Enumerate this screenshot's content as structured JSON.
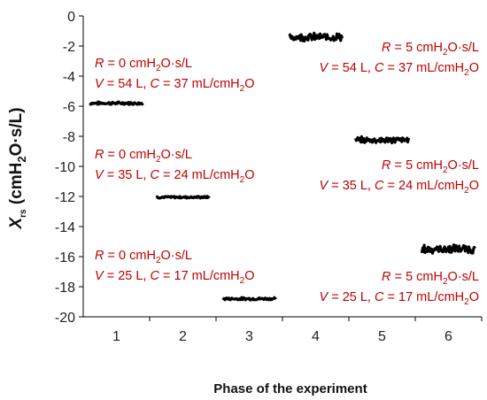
{
  "chart_data": {
    "type": "scatter",
    "xlabel": "Phase of the experiment",
    "ylabel": "Xrs (cmH2O·s/L)",
    "ylabel_main": "X",
    "ylabel_sub": "rs",
    "ylabel_units_pre": " (cmH",
    "ylabel_units_sub": "2",
    "ylabel_units_post": "O·s/L)",
    "xlim": [
      0.5,
      6.5
    ],
    "ylim": [
      -20,
      0
    ],
    "xticks": [
      "1",
      "2",
      "3",
      "4",
      "5",
      "6"
    ],
    "yticks": [
      "0",
      "-2",
      "-4",
      "-6",
      "-8",
      "-10",
      "-12",
      "-14",
      "-16",
      "-18",
      "-20"
    ],
    "grid": false,
    "series": [
      {
        "phase": 1,
        "x_range": [
          0.6,
          1.4
        ],
        "y_mean": -5.8,
        "noise": 0.08
      },
      {
        "phase": 2,
        "x_range": [
          1.6,
          2.4
        ],
        "y_mean": -12.05,
        "noise": 0.06
      },
      {
        "phase": 3,
        "x_range": [
          2.6,
          3.4
        ],
        "y_mean": -18.8,
        "noise": 0.07
      },
      {
        "phase": 4,
        "x_range": [
          3.6,
          4.4
        ],
        "y_mean": -1.4,
        "noise": 0.22
      },
      {
        "phase": 5,
        "x_range": [
          4.6,
          5.4
        ],
        "y_mean": -8.25,
        "noise": 0.18
      },
      {
        "phase": 6,
        "x_range": [
          5.6,
          6.4
        ],
        "y_mean": -15.5,
        "noise": 0.25
      }
    ],
    "annotations": [
      {
        "id": "a1",
        "r": "0",
        "v": "54",
        "c": "37",
        "align": "start"
      },
      {
        "id": "a2",
        "r": "0",
        "v": "35",
        "c": "24",
        "align": "start"
      },
      {
        "id": "a3",
        "r": "0",
        "v": "25",
        "c": "17",
        "align": "start"
      },
      {
        "id": "a4",
        "r": "5",
        "v": "54",
        "c": "37",
        "align": "end"
      },
      {
        "id": "a5",
        "r": "5",
        "v": "35",
        "c": "24",
        "align": "end"
      },
      {
        "id": "a6",
        "r": "5",
        "v": "25",
        "c": "17",
        "align": "end"
      }
    ],
    "annotation_text": {
      "r_sym": "R",
      "v_sym": "V",
      "c_sym": "C",
      "eq": " = ",
      "r_unit_pre": " cmH",
      "r_unit_sub": "2",
      "r_unit_post": "O·s/L",
      "v_unit": " L, ",
      "c_unit_pre": " mL/cmH",
      "c_unit_sub": "2",
      "c_unit_post": "O"
    },
    "colors": {
      "data": "#000000",
      "annotation": "#c00000",
      "axis": "#000000"
    }
  }
}
